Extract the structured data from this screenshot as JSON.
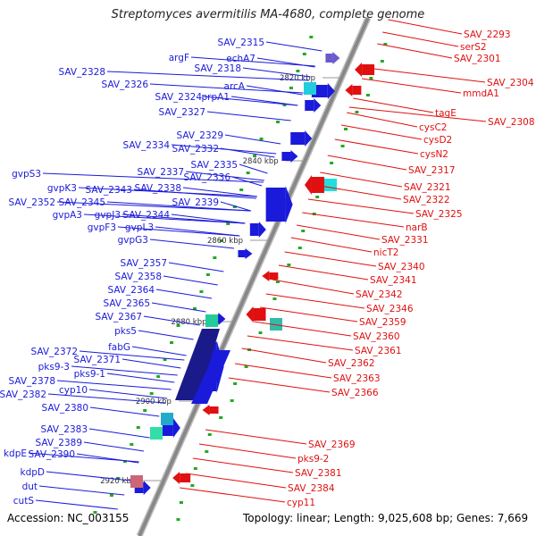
{
  "title": "Streptomyces avermitilis MA-4680, complete genome",
  "footer": {
    "accession": "Accession: NC_003155",
    "topology": "Topology: linear; Length: 9,025,608 bp; Genes: 7,669"
  },
  "colors": {
    "forward": "#1a1adb",
    "reverse": "#e01010",
    "axis": "#888888",
    "marker": "#22aa22"
  },
  "ticks": [
    "2820 kbp",
    "2840 kbp",
    "2860 kbp",
    "2880 kbp",
    "2900 kbp",
    "2920 kbp"
  ],
  "forward_labels": [
    "SAV_2315",
    "echA7",
    "argF",
    "SAV_2318",
    "SAV_2328",
    "arcA",
    "SAV_2326",
    "SAV_2324",
    "prpA1",
    "SAV_2327",
    "SAV_2329",
    "SAV_2334",
    "SAV_2332",
    "SAV_2335",
    "SAV_2337",
    "SAV_2336",
    "gvpS3",
    "gvpK3",
    "SAV_2343",
    "SAV_2338",
    "SAV_2352",
    "SAV_2345",
    "SAV_2339",
    "gvpA3",
    "gvpJ3",
    "SAV_2344",
    "gvpF3",
    "gvpL3",
    "gvpG3",
    "SAV_2357",
    "SAV_2358",
    "SAV_2364",
    "SAV_2365",
    "SAV_2367",
    "pks5",
    "fabG",
    "SAV_2372",
    "SAV_2371",
    "pks9-3",
    "pks9-1",
    "SAV_2378",
    "cyp10",
    "SAV_2382",
    "SAV_2380",
    "SAV_2383",
    "SAV_2389",
    "kdpE",
    "SAV_2390",
    "kdpD",
    "dut",
    "cutS"
  ],
  "reverse_labels": [
    "SAV_2293",
    "serS2",
    "SAV_2301",
    "SAV_2304",
    "mmdA1",
    "SAV_2308",
    "tagE",
    "cysC2",
    "cysD2",
    "cysN2",
    "SAV_2317",
    "SAV_2321",
    "SAV_2322",
    "SAV_2325",
    "narB",
    "SAV_2331",
    "nicT2",
    "SAV_2340",
    "SAV_2341",
    "SAV_2342",
    "SAV_2346",
    "SAV_2359",
    "SAV_2360",
    "SAV_2361",
    "SAV_2362",
    "SAV_2363",
    "SAV_2366",
    "SAV_2369",
    "pks9-2",
    "SAV_2381",
    "SAV_2384",
    "cyp11"
  ]
}
